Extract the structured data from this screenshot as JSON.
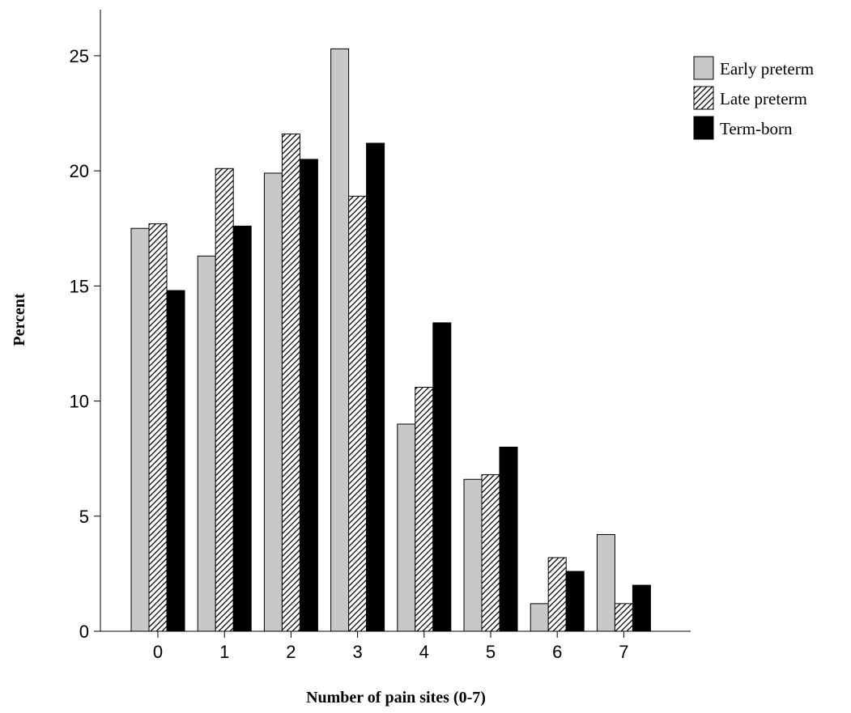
{
  "chart_data": {
    "type": "bar",
    "xlabel": "Number of pain sites (0-7)",
    "ylabel": "Percent",
    "categories": [
      "0",
      "1",
      "2",
      "3",
      "4",
      "5",
      "6",
      "7"
    ],
    "ylim": [
      0,
      27
    ],
    "yticks": [
      0,
      5,
      10,
      15,
      20,
      25
    ],
    "grid": false,
    "legend_position": "top-right",
    "series": [
      {
        "name": "Early preterm",
        "fill": "pattern-light-gray",
        "color": "#c8c8c8",
        "values": [
          17.5,
          16.3,
          19.9,
          25.3,
          9.0,
          6.6,
          1.2,
          4.2
        ]
      },
      {
        "name": "Late preterm",
        "fill": "pattern-diagonal-hatch",
        "color": "#ffffff",
        "values": [
          17.7,
          20.1,
          21.6,
          18.9,
          10.6,
          6.8,
          3.2,
          1.2
        ]
      },
      {
        "name": "Term-born",
        "fill": "pattern-solid-black",
        "color": "#000000",
        "values": [
          14.8,
          17.6,
          20.5,
          21.2,
          13.4,
          8.0,
          2.6,
          2.0
        ]
      }
    ]
  }
}
